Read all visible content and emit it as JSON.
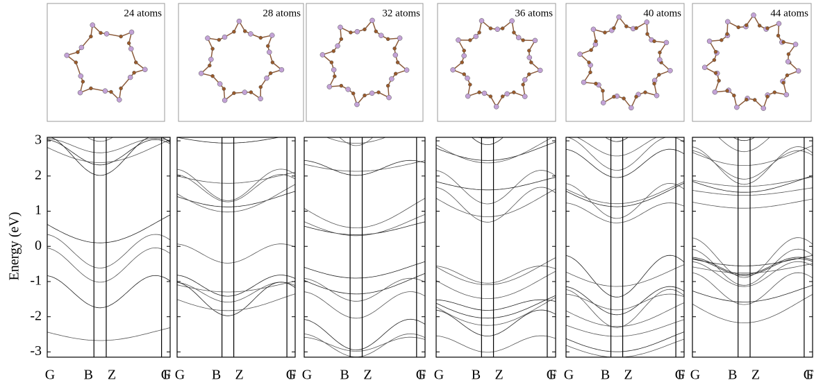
{
  "y_axis_label": "Energy (eV)",
  "ylim": [
    -3.15,
    3.1
  ],
  "yticks": [
    3,
    2,
    1,
    0,
    -1,
    -2,
    -3
  ],
  "k_labels": [
    "G",
    "B",
    "Z",
    "F",
    "G"
  ],
  "panels": [
    {
      "title": "24 atoms"
    },
    {
      "title": "28 atoms"
    },
    {
      "title": "32 atoms"
    },
    {
      "title": "36 atoms"
    },
    {
      "title": "40 atoms"
    },
    {
      "title": "44 atoms"
    }
  ]
}
